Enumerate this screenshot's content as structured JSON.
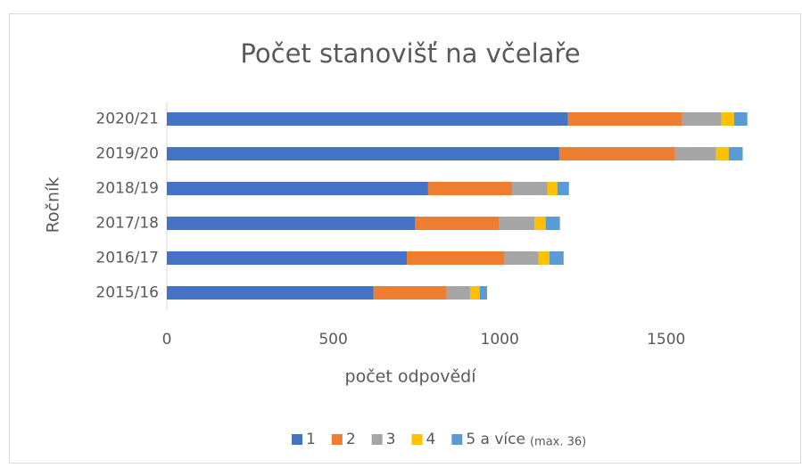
{
  "chart_data": {
    "type": "stacked-bar-horizontal",
    "title": "Počet stanovišť na včelaře",
    "x_label": "počet odpovědí",
    "y_label": "Ročník",
    "categories": [
      "2015/16",
      "2016/17",
      "2017/18",
      "2018/19",
      "2019/20",
      "2020/21"
    ],
    "series": [
      {
        "name": "1",
        "color": "#4472c4",
        "values": [
          621,
          721,
          745,
          785,
          1179,
          1205
        ]
      },
      {
        "name": "2",
        "color": "#ed7d31",
        "values": [
          220,
          294,
          254,
          252,
          348,
          343
        ]
      },
      {
        "name": "3",
        "color": "#a5a5a5",
        "values": [
          70,
          102,
          105,
          107,
          123,
          118
        ]
      },
      {
        "name": "4",
        "color": "#ffc000",
        "values": [
          29,
          32,
          34,
          29,
          38,
          38
        ]
      },
      {
        "name": "5 a více",
        "color": "#5b9bd5",
        "values": [
          22,
          43,
          43,
          35,
          42,
          40
        ]
      }
    ],
    "legend_note": "(max. 36)",
    "xlim": [
      0,
      1750
    ],
    "xticks": [
      0,
      500,
      1000,
      1500
    ],
    "legend": "bottom"
  }
}
